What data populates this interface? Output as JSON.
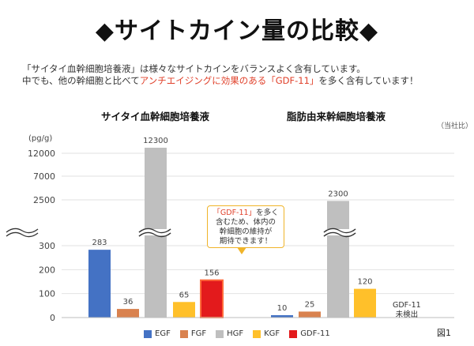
{
  "title": "◆サイトカイン量の比較◆",
  "intro": {
    "line1": "「サイタイ血幹細胞培養液」は様々なサイトカインをバランスよく含有しています。",
    "line2_pre": "中でも、他の幹細胞と比べて",
    "line2_highlight": "アンチエイジングに効果のある「GDF-11」",
    "line2_post": "を多く含有しています！"
  },
  "company_note": "（当社比）",
  "unit_label": "(pg/g)",
  "callout": {
    "highlight": "「GDF-11」",
    "text_line1": "を多く",
    "text_line2": "含むため、体内の",
    "text_line3": "幹細胞の維持が",
    "text_line4": "期待できます！"
  },
  "missing_note": {
    "line1": "GDF-11",
    "line2": "未検出"
  },
  "figure_label": "図1",
  "colors": {
    "EGF": "#4472c4",
    "FGF": "#d9824f",
    "HGF": "#bfbfbf",
    "KGF": "#ffc02a",
    "GDF-11": "#e31a1c"
  },
  "chart_data": {
    "type": "bar",
    "y_ticks": [
      "0",
      "100",
      "200",
      "300",
      "2500",
      "7000",
      "12000"
    ],
    "axis_break": true,
    "legend": [
      "EGF",
      "FGF",
      "HGF",
      "KGF",
      "GDF-11"
    ],
    "legend_position": "bottom",
    "panels": [
      {
        "title": "サイタイ血幹細胞培養液",
        "series": [
          {
            "name": "EGF",
            "value": 283,
            "label": "283"
          },
          {
            "name": "FGF",
            "value": 36,
            "label": "36"
          },
          {
            "name": "HGF",
            "value": 12300,
            "label": "12300"
          },
          {
            "name": "KGF",
            "value": 65,
            "label": "65"
          },
          {
            "name": "GDF-11",
            "value": 156,
            "label": "156"
          }
        ]
      },
      {
        "title": "脂肪由来幹細胞培養液",
        "series": [
          {
            "name": "EGF",
            "value": 10,
            "label": "10"
          },
          {
            "name": "FGF",
            "value": 25,
            "label": "25"
          },
          {
            "name": "HGF",
            "value": 2300,
            "label": "2300"
          },
          {
            "name": "KGF",
            "value": 120,
            "label": "120"
          },
          {
            "name": "GDF-11",
            "value": null,
            "label": ""
          }
        ]
      }
    ]
  }
}
